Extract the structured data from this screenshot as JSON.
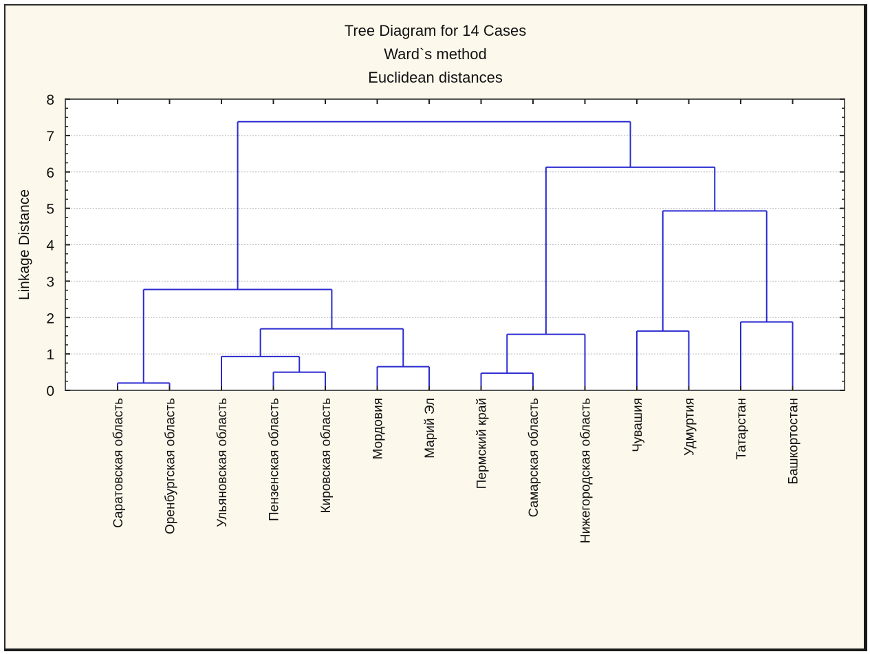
{
  "chart_data": {
    "type": "dendrogram",
    "title": [
      "Tree Diagram for 14 Cases",
      "Ward`s method",
      "Euclidean distances"
    ],
    "xlabel": "",
    "ylabel": "Linkage Distance",
    "ylim": [
      0,
      8
    ],
    "yticks": [
      0,
      1,
      2,
      3,
      4,
      5,
      6,
      7,
      8
    ],
    "grid": "horizontal-dotted",
    "line_color": "#2a2ad0",
    "leaves": [
      "Саратовская область",
      "Оренбургская область",
      "Ульяновская область",
      "Пензенская область",
      "Кировская область",
      "Мордовия",
      "Марий Эл",
      "Пермский край",
      "Самарская область",
      "Нижегородская область",
      "Чувашия",
      "Удмуртия",
      "Татарстан",
      "Башкортостан"
    ],
    "merges": [
      {
        "id": "m1",
        "left": "L0",
        "right": "L1",
        "height": 0.2
      },
      {
        "id": "m2",
        "left": "L3",
        "right": "L4",
        "height": 0.5
      },
      {
        "id": "m3",
        "left": "L5",
        "right": "L6",
        "height": 0.65
      },
      {
        "id": "m4",
        "left": "L2",
        "right": "m2",
        "height": 0.93
      },
      {
        "id": "m5",
        "left": "L7",
        "right": "L8",
        "height": 0.47
      },
      {
        "id": "m6",
        "left": "L10",
        "right": "L11",
        "height": 1.63
      },
      {
        "id": "m7",
        "left": "m4",
        "right": "m3",
        "height": 1.69
      },
      {
        "id": "m8",
        "left": "m5",
        "right": "L9",
        "height": 1.54
      },
      {
        "id": "m9",
        "left": "L12",
        "right": "L13",
        "height": 1.88
      },
      {
        "id": "m10",
        "left": "m1",
        "right": "m7",
        "height": 2.77
      },
      {
        "id": "m11",
        "left": "m6",
        "right": "m9",
        "height": 4.93
      },
      {
        "id": "m12",
        "left": "m8",
        "right": "m11",
        "height": 6.13
      },
      {
        "id": "m13",
        "left": "m10",
        "right": "m12",
        "height": 7.38
      }
    ]
  }
}
